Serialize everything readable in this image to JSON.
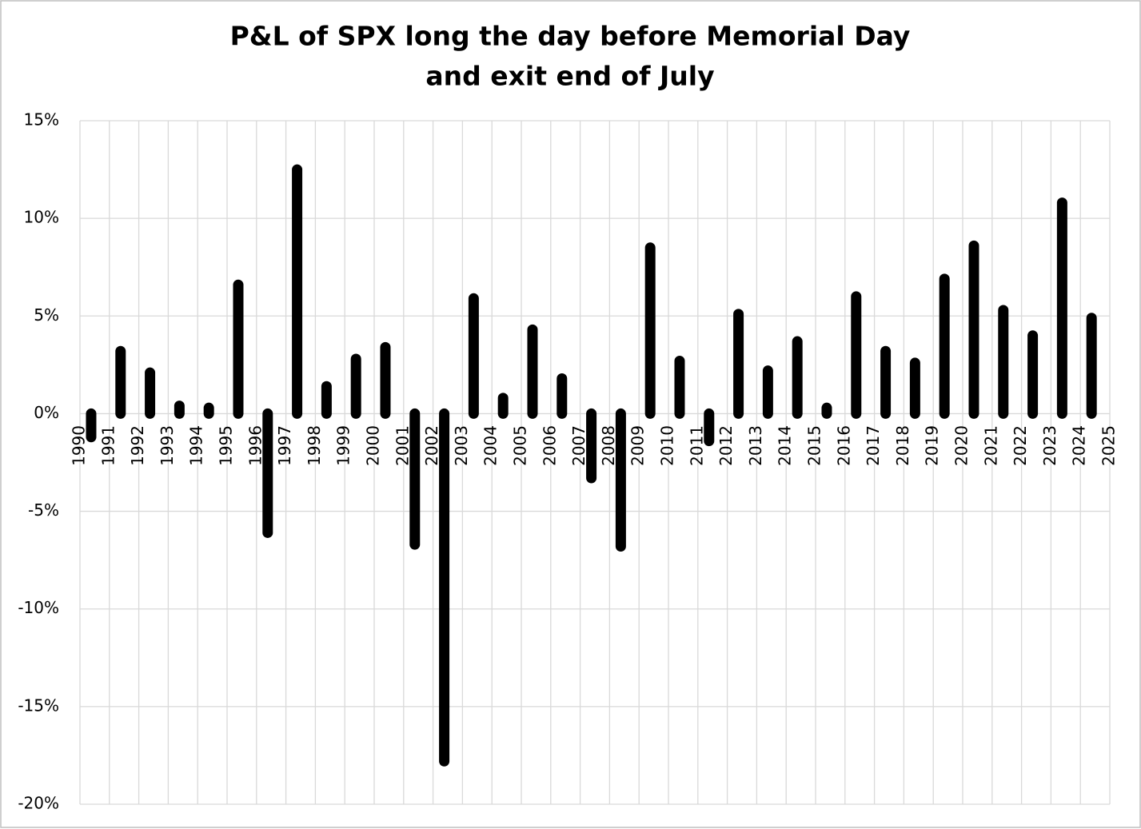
{
  "chart_data": {
    "type": "bar",
    "title": [
      "P&L of SPX long the day before Memorial Day",
      "and exit end of July"
    ],
    "x": [
      1990,
      1991,
      1992,
      1993,
      1994,
      1995,
      1996,
      1997,
      1998,
      1999,
      2000,
      2001,
      2002,
      2003,
      2004,
      2005,
      2006,
      2007,
      2008,
      2009,
      2010,
      2011,
      2012,
      2013,
      2014,
      2015,
      2016,
      2017,
      2018,
      2019,
      2020,
      2021,
      2022,
      2023,
      2024
    ],
    "values": [
      -1.2,
      3.2,
      2.1,
      0.4,
      0.3,
      6.6,
      -6.1,
      12.5,
      1.4,
      2.8,
      3.4,
      -6.7,
      -17.8,
      5.9,
      0.8,
      4.3,
      1.8,
      -3.3,
      -6.8,
      8.5,
      2.7,
      -1.4,
      5.1,
      2.2,
      3.7,
      0.3,
      6.0,
      3.2,
      2.6,
      6.9,
      8.6,
      5.3,
      4.0,
      10.8,
      4.9
    ],
    "color": "#000000",
    "xlim": [
      1990,
      2025
    ],
    "xticks": [
      1990,
      1991,
      1992,
      1993,
      1994,
      1995,
      1996,
      1997,
      1998,
      1999,
      2000,
      2001,
      2002,
      2003,
      2004,
      2005,
      2006,
      2007,
      2008,
      2009,
      2010,
      2011,
      2012,
      2013,
      2014,
      2015,
      2016,
      2017,
      2018,
      2019,
      2020,
      2021,
      2022,
      2023,
      2024,
      2025
    ],
    "ylim": [
      -20,
      15
    ],
    "yticks": [
      {
        "value": -20,
        "label": "-20%"
      },
      {
        "value": -15,
        "label": "-15%"
      },
      {
        "value": -10,
        "label": "-10%"
      },
      {
        "value": -5,
        "label": "-5%"
      },
      {
        "value": 0,
        "label": "0%"
      },
      {
        "value": 5,
        "label": "5%"
      },
      {
        "value": 10,
        "label": "10%"
      },
      {
        "value": 15,
        "label": "15%"
      }
    ],
    "grid": true
  }
}
